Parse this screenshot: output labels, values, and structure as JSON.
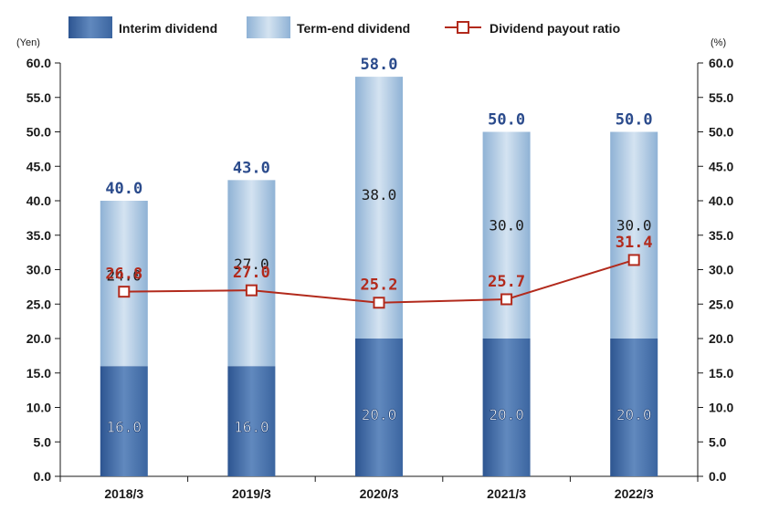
{
  "chart_data": {
    "type": "bar",
    "stacked": true,
    "categories": [
      "2018/3",
      "2019/3",
      "2020/3",
      "2021/3",
      "2022/3"
    ],
    "series": [
      {
        "name": "Interim dividend",
        "values": [
          16.0,
          16.0,
          20.0,
          20.0,
          20.0
        ],
        "axis": "left"
      },
      {
        "name": "Term-end dividend",
        "values": [
          24.0,
          27.0,
          38.0,
          30.0,
          30.0
        ],
        "axis": "left"
      },
      {
        "name": "Dividend payout ratio",
        "type": "line",
        "values": [
          26.8,
          27.0,
          25.2,
          25.7,
          31.4
        ],
        "axis": "right"
      }
    ],
    "totals": [
      40.0,
      43.0,
      58.0,
      50.0,
      50.0
    ],
    "y_left": {
      "label": "(Yen)",
      "min": 0,
      "max": 60,
      "step": 5
    },
    "y_right": {
      "label": "(%)",
      "min": 0,
      "max": 60,
      "step": 5
    },
    "legend_position": "top",
    "grid": false,
    "colors": {
      "interim_top": "#3b65a0",
      "interim_mid": "#6189be",
      "interim_bottom": "#2d5591",
      "termend_edge": "#8fb2d5",
      "termend_center": "#d4e3f1",
      "ratio_line": "#b22a1c",
      "total_text": "#2b4b8c",
      "axis": "#1a1a1a"
    }
  }
}
